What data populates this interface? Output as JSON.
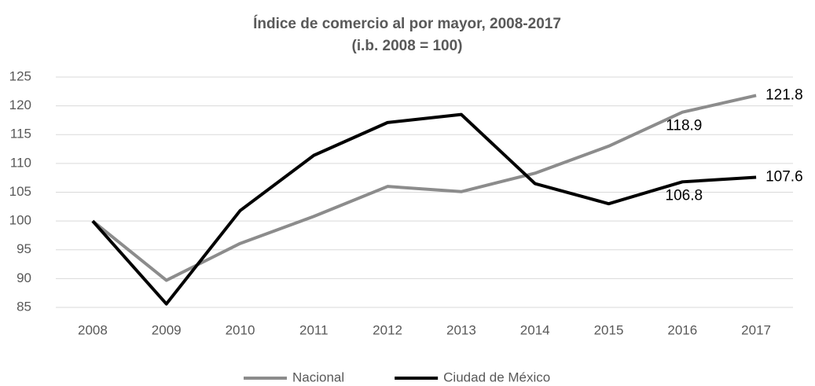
{
  "chart_data": {
    "type": "line",
    "title": "Índice de comercio al por mayor, 2008-2017",
    "subtitle": "(i.b. 2008 = 100)",
    "categories": [
      "2008",
      "2009",
      "2010",
      "2011",
      "2012",
      "2013",
      "2014",
      "2015",
      "2016",
      "2017"
    ],
    "series": [
      {
        "name": "Nacional",
        "color": "#8c8c8c",
        "values": [
          100,
          89.7,
          96.1,
          100.8,
          106,
          105.1,
          108.3,
          113,
          118.9,
          121.8
        ],
        "value_labels": [
          null,
          null,
          null,
          null,
          null,
          null,
          null,
          null,
          "118.9",
          "121.8"
        ]
      },
      {
        "name": "Ciudad de México",
        "color": "#000000",
        "values": [
          100,
          85.6,
          101.8,
          111.4,
          117.1,
          118.5,
          106.5,
          103,
          106.8,
          107.6
        ],
        "value_labels": [
          null,
          null,
          null,
          null,
          null,
          null,
          null,
          null,
          "106.8",
          "107.6"
        ]
      }
    ],
    "ylim": [
      85,
      125
    ],
    "yticks": [
      85,
      90,
      95,
      100,
      105,
      110,
      115,
      120,
      125
    ],
    "grid": true,
    "legend": "bottom"
  }
}
